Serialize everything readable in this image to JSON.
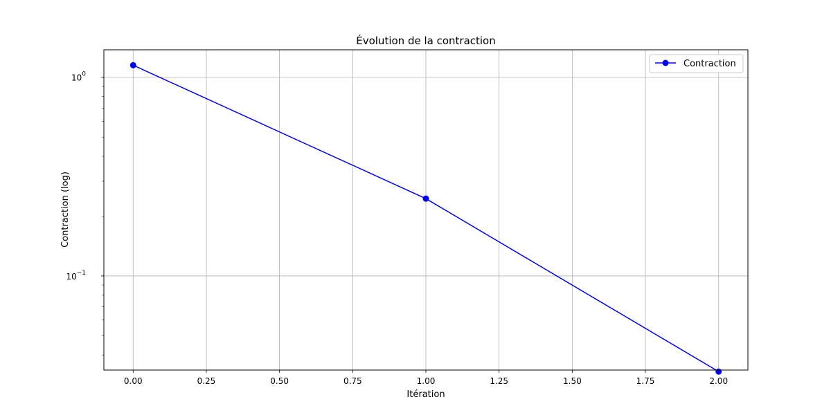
{
  "chart_data": {
    "type": "line",
    "title": "Évolution de la contraction",
    "xlabel": "Itération",
    "ylabel": "Contraction (log)",
    "yscale": "log",
    "xlim": [
      -0.1,
      2.1
    ],
    "ylim": [
      0.0336,
      1.375
    ],
    "grid": true,
    "legend_position": "top-right",
    "x_ticks": [
      0.0,
      0.25,
      0.5,
      0.75,
      1.0,
      1.25,
      1.5,
      1.75,
      2.0
    ],
    "x_tick_labels": [
      "0.00",
      "0.25",
      "0.50",
      "0.75",
      "1.00",
      "1.25",
      "1.50",
      "1.75",
      "2.00"
    ],
    "y_major_ticks": [
      {
        "value": 1,
        "base": "10",
        "exp": "0"
      },
      {
        "value": 0.1,
        "base": "10",
        "exp": "−1"
      }
    ],
    "series": [
      {
        "name": "Contraction",
        "color": "#0000ff",
        "marker": "circle",
        "x": [
          0,
          1,
          2
        ],
        "y": [
          1.15,
          0.245,
          0.033
        ]
      }
    ]
  }
}
